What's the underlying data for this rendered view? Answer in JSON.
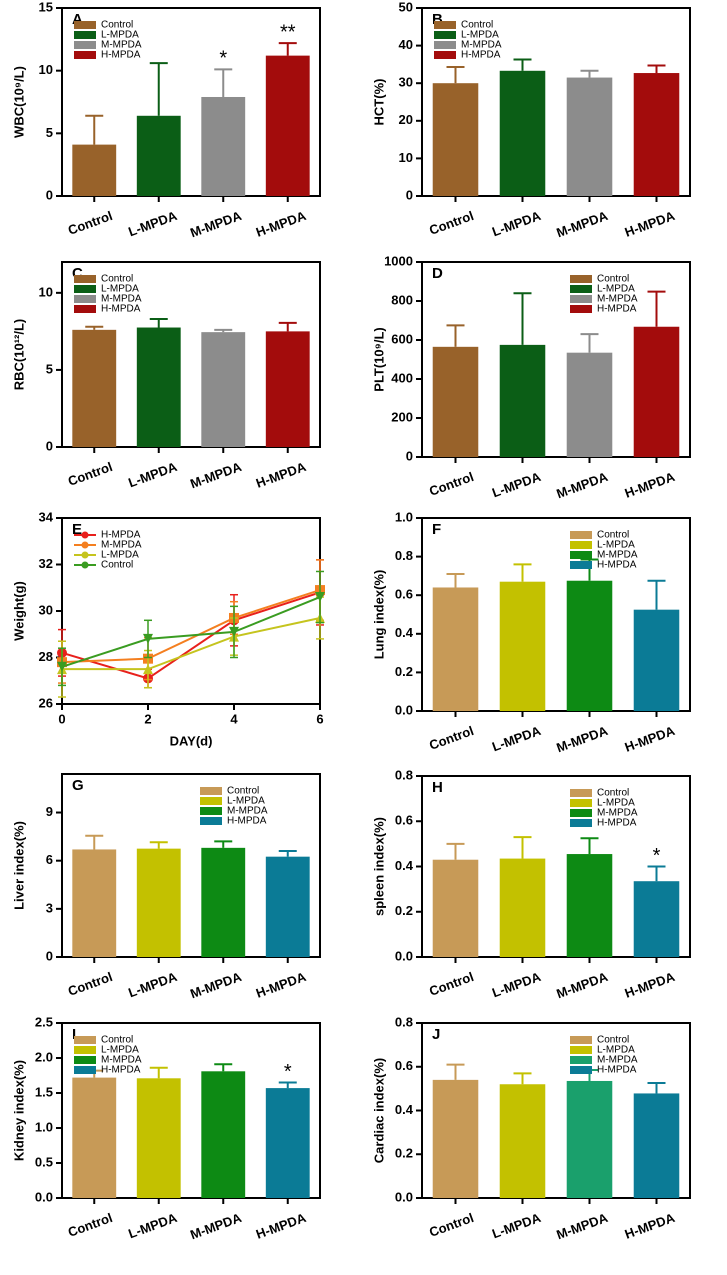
{
  "chart_data": [
    {
      "type": "bar",
      "panel": "A",
      "ylabel": "WBC(10⁹/L)",
      "categories": [
        "Control",
        "L-MPDA",
        "M-MPDA",
        "H-MPDA"
      ],
      "values": [
        4.1,
        6.4,
        7.9,
        11.2
      ],
      "errors": [
        2.3,
        4.2,
        2.2,
        1.0
      ],
      "significance": [
        null,
        null,
        "*",
        "**"
      ],
      "colors": [
        "#98622a",
        "#0b5e16",
        "#8c8c8c",
        "#a30c0c"
      ],
      "ylim": [
        0,
        15
      ],
      "yticks": [
        0,
        5,
        10,
        15
      ],
      "legend": "upper-left"
    },
    {
      "type": "bar",
      "panel": "B",
      "ylabel": "HCT(%)",
      "categories": [
        "Control",
        "L-MPDA",
        "M-MPDA",
        "H-MPDA"
      ],
      "values": [
        30,
        33.3,
        31.5,
        32.7
      ],
      "errors": [
        4.3,
        3,
        1.8,
        2
      ],
      "colors": [
        "#98622a",
        "#0b5e16",
        "#8c8c8c",
        "#a30c0c"
      ],
      "ylim": [
        0,
        50
      ],
      "yticks": [
        0,
        10,
        20,
        30,
        40,
        50
      ],
      "legend": "upper-left"
    },
    {
      "type": "bar",
      "panel": "C",
      "ylabel": "RBC(10¹²/L)",
      "categories": [
        "Control",
        "L-MPDA",
        "M-MPDA",
        "H-MPDA"
      ],
      "values": [
        7.6,
        7.75,
        7.45,
        7.5
      ],
      "errors": [
        0.2,
        0.55,
        0.15,
        0.55
      ],
      "colors": [
        "#98622a",
        "#0b5e16",
        "#8c8c8c",
        "#a30c0c"
      ],
      "ylim": [
        0,
        12
      ],
      "yticks": [
        0,
        5,
        10
      ],
      "legend": "upper-left"
    },
    {
      "type": "bar",
      "panel": "D",
      "ylabel": "PLT(10⁹/L)",
      "categories": [
        "Control",
        "L-MPDA",
        "M-MPDA",
        "H-MPDA"
      ],
      "values": [
        565,
        575,
        535,
        668
      ],
      "errors": [
        110,
        265,
        95,
        180
      ],
      "colors": [
        "#98622a",
        "#0b5e16",
        "#8c8c8c",
        "#a30c0c"
      ],
      "ylim": [
        0,
        1000
      ],
      "yticks": [
        0,
        200,
        400,
        600,
        800,
        1000
      ],
      "legend": "upper-right"
    },
    {
      "type": "line",
      "panel": "E",
      "ylabel": "Weight(g)",
      "xlabel": "DAY(d)",
      "x": [
        0,
        2,
        4,
        6
      ],
      "xlim": [
        0,
        6
      ],
      "xticks": [
        0,
        2,
        4,
        6
      ],
      "ylim": [
        26,
        34
      ],
      "yticks": [
        26,
        28,
        30,
        32,
        34
      ],
      "legend": "upper-left",
      "series": [
        {
          "name": "H-MPDA",
          "color": "#e8201c",
          "marker": "circle",
          "values": [
            28.2,
            27.1,
            29.6,
            30.8
          ],
          "errors": [
            1.0,
            0.4,
            1.1,
            1.4
          ]
        },
        {
          "name": "M-MPDA",
          "color": "#f47f20",
          "marker": "square",
          "values": [
            27.8,
            27.95,
            29.7,
            30.9
          ],
          "errors": [
            0.9,
            0.9,
            0.7,
            1.3
          ]
        },
        {
          "name": "L-MPDA",
          "color": "#c5c41e",
          "marker": "triangle",
          "values": [
            27.5,
            27.5,
            28.9,
            29.7
          ],
          "errors": [
            1.2,
            0.8,
            0.8,
            0.9
          ]
        },
        {
          "name": "Control",
          "color": "#3a9c21",
          "marker": "triangle-down",
          "values": [
            27.6,
            28.8,
            29.1,
            30.6
          ],
          "errors": [
            0.8,
            0.8,
            1.1,
            1.1
          ]
        }
      ]
    },
    {
      "type": "bar",
      "panel": "F",
      "ylabel": "Lung index(%)",
      "categories": [
        "Control",
        "L-MPDA",
        "M-MPDA",
        "H-MPDA"
      ],
      "values": [
        0.64,
        0.67,
        0.675,
        0.525
      ],
      "errors": [
        0.07,
        0.09,
        0.11,
        0.15
      ],
      "colors": [
        "#c79a57",
        "#c3c100",
        "#0d8a14",
        "#0b7b96"
      ],
      "ylim": [
        0,
        1.0
      ],
      "yticks": [
        {
          "value": 0,
          "label": "0.0"
        },
        0.2,
        0.4,
        0.6,
        0.8,
        {
          "value": 1.0,
          "label": "1.0"
        }
      ],
      "legend": "upper-right"
    },
    {
      "type": "bar",
      "panel": "G",
      "ylabel": "Liver index(%)",
      "categories": [
        "Control",
        "L-MPDA",
        "M-MPDA",
        "H-MPDA"
      ],
      "values": [
        6.7,
        6.75,
        6.8,
        6.25
      ],
      "errors": [
        0.85,
        0.4,
        0.4,
        0.35
      ],
      "colors": [
        "#c79a57",
        "#c3c100",
        "#0d8a14",
        "#0b7b96"
      ],
      "ylim": [
        0,
        11.4
      ],
      "yticks": [
        0,
        3,
        6,
        9
      ],
      "legend": "upper-right"
    },
    {
      "type": "bar",
      "panel": "H",
      "ylabel": "spleen index(%)",
      "categories": [
        "Control",
        "L-MPDA",
        "M-MPDA",
        "H-MPDA"
      ],
      "values": [
        0.43,
        0.435,
        0.455,
        0.335
      ],
      "errors": [
        0.07,
        0.095,
        0.07,
        0.065
      ],
      "significance": [
        null,
        null,
        null,
        "*"
      ],
      "colors": [
        "#c79a57",
        "#c3c100",
        "#0d8a14",
        "#0b7b96"
      ],
      "ylim": [
        0,
        0.8
      ],
      "yticks": [
        {
          "value": 0,
          "label": "0.0"
        },
        0.2,
        0.4,
        0.6,
        0.8
      ],
      "legend": "upper-right"
    },
    {
      "type": "bar",
      "panel": "I",
      "ylabel": "Kidney index(%)",
      "categories": [
        "Control",
        "L-MPDA",
        "M-MPDA",
        "H-MPDA"
      ],
      "values": [
        1.72,
        1.71,
        1.81,
        1.57
      ],
      "errors": [
        0.1,
        0.15,
        0.1,
        0.08
      ],
      "significance": [
        null,
        null,
        null,
        "*"
      ],
      "colors": [
        "#c79a57",
        "#c3c100",
        "#0d8a14",
        "#0b7b96"
      ],
      "ylim": [
        0,
        2.5
      ],
      "yticks": [
        {
          "value": 0,
          "label": "0.0"
        },
        0.5,
        {
          "value": 1.0,
          "label": "1.0"
        },
        1.5,
        {
          "value": 2.0,
          "label": "2.0"
        },
        2.5
      ],
      "legend": "upper-left"
    },
    {
      "type": "bar",
      "panel": "J",
      "ylabel": "Cardiac index(%)",
      "categories": [
        "Control",
        "L-MPDA",
        "M-MPDA",
        "H-MPDA"
      ],
      "values": [
        0.54,
        0.52,
        0.535,
        0.478
      ],
      "errors": [
        0.07,
        0.05,
        0.05,
        0.048
      ],
      "colors": [
        "#c79a57",
        "#c3c100",
        "#1aa06c",
        "#0b7b96"
      ],
      "ylim": [
        0,
        0.8
      ],
      "yticks": [
        {
          "value": 0,
          "label": "0.0"
        },
        0.2,
        0.4,
        0.6,
        0.8
      ],
      "legend": "upper-right"
    }
  ]
}
